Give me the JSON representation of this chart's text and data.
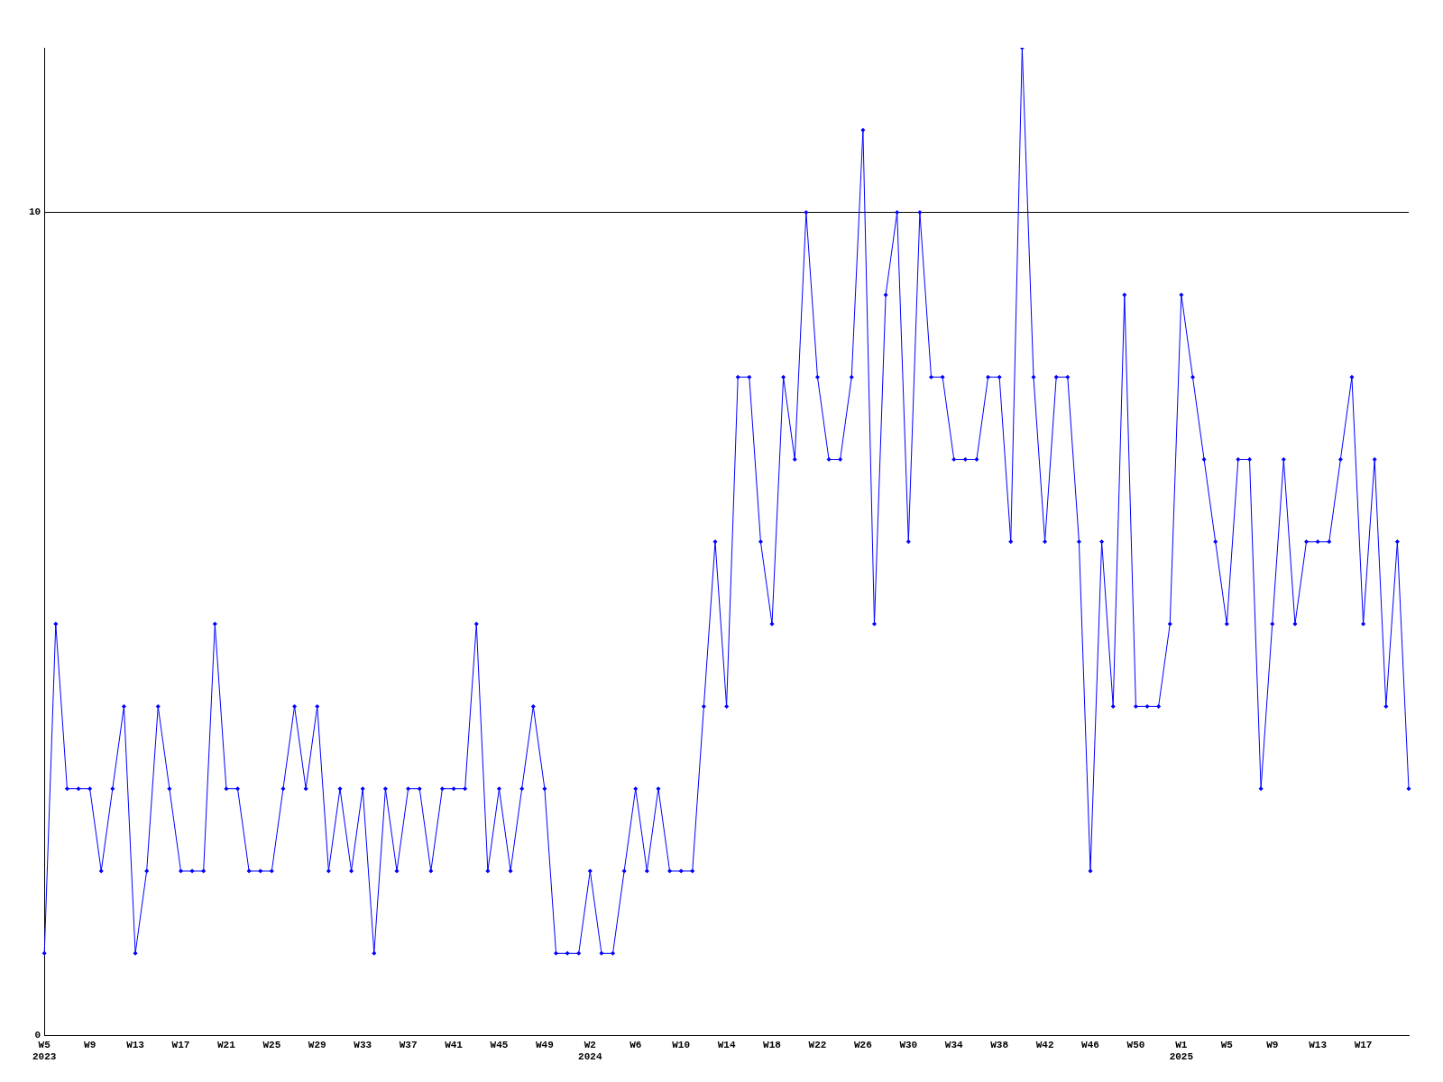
{
  "chart_data": {
    "type": "line",
    "categories": [
      "W5\n2023",
      null,
      null,
      null,
      "W9",
      null,
      null,
      null,
      "W13",
      null,
      null,
      null,
      "W17",
      null,
      null,
      null,
      "W21",
      null,
      null,
      null,
      "W25",
      null,
      null,
      null,
      "W29",
      null,
      null,
      null,
      "W33",
      null,
      null,
      null,
      "W37",
      null,
      null,
      null,
      "W41",
      null,
      null,
      null,
      "W45",
      null,
      null,
      null,
      "W49",
      null,
      null,
      null,
      "W2\n2024",
      null,
      null,
      null,
      "W6",
      null,
      null,
      null,
      "W10",
      null,
      null,
      null,
      "W14",
      null,
      null,
      null,
      "W18",
      null,
      null,
      null,
      "W22",
      null,
      null,
      null,
      "W26",
      null,
      null,
      null,
      "W30",
      null,
      null,
      null,
      "W34",
      null,
      null,
      null,
      "W38",
      null,
      null,
      null,
      "W42",
      null,
      null,
      null,
      "W46",
      null,
      null,
      null,
      "W50",
      null,
      null,
      null,
      "W1\n2025",
      null,
      null,
      null,
      "W5",
      null,
      null,
      null,
      "W9",
      null,
      null,
      null,
      "W13",
      null,
      null,
      null,
      "W17",
      null,
      null,
      null,
      null
    ],
    "series": [
      {
        "color": "#0000ff",
        "values": [
          1,
          5,
          3,
          3,
          3,
          2,
          3,
          4,
          1,
          2,
          4,
          3,
          2,
          2,
          2,
          5,
          3,
          3,
          2,
          2,
          2,
          3,
          4,
          3,
          4,
          2,
          3,
          2,
          3,
          1,
          3,
          2,
          3,
          3,
          2,
          3,
          3,
          3,
          5,
          2,
          3,
          2,
          3,
          4,
          3,
          1,
          1,
          1,
          2,
          1,
          1,
          2,
          3,
          2,
          3,
          2,
          2,
          2,
          4,
          6,
          4,
          8,
          8,
          6,
          5,
          8,
          7,
          10,
          8,
          7,
          7,
          8,
          11,
          5,
          9,
          10,
          6,
          10,
          8,
          8,
          7,
          7,
          7,
          8,
          8,
          6,
          12,
          8,
          6,
          8,
          8,
          6,
          2,
          6,
          4,
          9,
          4,
          4,
          4,
          5,
          9,
          8,
          7,
          6,
          5,
          7,
          7,
          3,
          5,
          7,
          5,
          6,
          6,
          6,
          7,
          8,
          5,
          7,
          4,
          6,
          3
        ]
      }
    ],
    "ylim": [
      0,
      12
    ],
    "yticks": [
      0,
      10
    ],
    "grid": "y",
    "legend": false,
    "marker": "diamond",
    "line_style": "solid"
  }
}
